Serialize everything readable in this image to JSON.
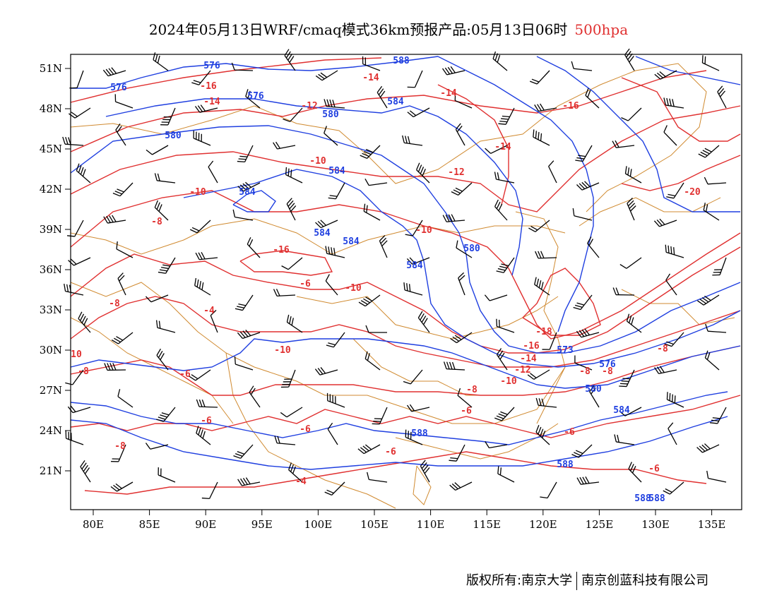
{
  "title": {
    "main": "2024年05月13日WRF/cmaq模式36km预报产品:05月13日06时",
    "level": "500hpa"
  },
  "map": {
    "lon_range": [
      78,
      138
    ],
    "lat_range": [
      18,
      52
    ],
    "lon_ticks": [
      "80E",
      "85E",
      "90E",
      "95E",
      "100E",
      "105E",
      "110E",
      "115E",
      "120E",
      "125E",
      "130E",
      "135E"
    ],
    "lat_ticks": [
      "51N",
      "48N",
      "45N",
      "42N",
      "39N",
      "36N",
      "33N",
      "30N",
      "27N",
      "24N",
      "21N"
    ],
    "colors": {
      "geopotential": "#1f3fe0",
      "temperature": "#e03030",
      "border": "#d08a30",
      "wind": "#000000"
    },
    "geopotential_labels": [
      "576",
      "576",
      "576",
      "580",
      "580",
      "584",
      "584",
      "584",
      "584",
      "584",
      "580",
      "584",
      "588",
      "573",
      "576",
      "580",
      "584",
      "588",
      "588",
      "588",
      "588"
    ],
    "temperature_labels": [
      "-16",
      "-14",
      "-14",
      "-12",
      "-14",
      "-16",
      "-14",
      "-12",
      "-10",
      "-10",
      "-8",
      "-10",
      "-16",
      "-10",
      "-6",
      "-4",
      "-8",
      "-10",
      "-6",
      "-18",
      "-16",
      "-14",
      "-12",
      "-10",
      "-8",
      "-6",
      "-8",
      "-6",
      "-8",
      "-20",
      "-8",
      "-6",
      "-6",
      "-4",
      "10",
      "-8",
      "-8",
      "-6",
      "-6"
    ]
  },
  "footer": {
    "left": "版权所有:南京大学",
    "right": "南京创蓝科技有限公司"
  }
}
